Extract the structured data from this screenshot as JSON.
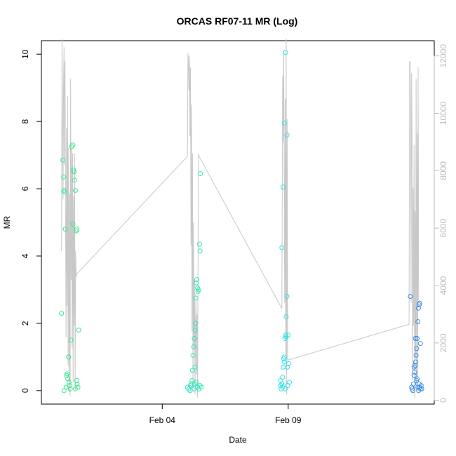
{
  "chart_data": {
    "type": "scatter",
    "title": "ORCAS RF07-11 MR (Log)",
    "xlabel": "Date",
    "ylabel": "MR",
    "x_ticks": [
      {
        "label": "Feb 04",
        "value": 4.0
      },
      {
        "label": "Feb 09",
        "value": 9.0
      }
    ],
    "xlim": [
      -0.8,
      14.8
    ],
    "ylim": [
      -0.4,
      10.4
    ],
    "y_ticks": [
      "0",
      "2",
      "4",
      "6",
      "8",
      "10"
    ],
    "y2_ticks": [
      "0",
      "2000",
      "4000",
      "6000",
      "8000",
      "10000",
      "12000"
    ],
    "y2lim": [
      -130,
      12530
    ],
    "grid": false,
    "colors": {
      "series_line": "#c8c8c8",
      "flight_1": "#3ce88e",
      "flight_2": "#33e6bb",
      "flight_3": "#33e0e6",
      "flight_4": "#3b8ee8"
    },
    "series": [
      {
        "flight": 1,
        "color_key": "flight_1",
        "points": [
          [
            0.0,
            2.3
          ],
          [
            0.05,
            6.85
          ],
          [
            0.08,
            6.35
          ],
          [
            0.1,
            5.95
          ],
          [
            0.12,
            5.9
          ],
          [
            0.15,
            4.8
          ],
          [
            0.2,
            0.45
          ],
          [
            0.25,
            0.35
          ],
          [
            0.3,
            0.25
          ],
          [
            0.32,
            0.15
          ],
          [
            0.35,
            0.05
          ],
          [
            0.1,
            0.0
          ],
          [
            0.18,
            0.1
          ],
          [
            0.22,
            0.5
          ],
          [
            0.28,
            1.0
          ],
          [
            0.38,
            1.5
          ],
          [
            0.4,
            7.25
          ],
          [
            0.45,
            7.3
          ],
          [
            0.48,
            6.55
          ],
          [
            0.5,
            6.5
          ],
          [
            0.52,
            6.25
          ],
          [
            0.55,
            5.95
          ],
          [
            0.45,
            4.95
          ],
          [
            0.58,
            4.75
          ],
          [
            0.6,
            4.8
          ],
          [
            0.6,
            0.3
          ],
          [
            0.62,
            0.2
          ],
          [
            0.65,
            0.1
          ],
          [
            0.68,
            1.8
          ],
          [
            0.55,
            0.05
          ]
        ]
      },
      {
        "flight": 2,
        "color_key": "flight_2",
        "points": [
          [
            5.0,
            0.1
          ],
          [
            5.05,
            0.05
          ],
          [
            5.1,
            0.0
          ],
          [
            5.12,
            0.15
          ],
          [
            5.15,
            0.2
          ],
          [
            5.18,
            0.3
          ],
          [
            5.2,
            0.6
          ],
          [
            5.22,
            1.05
          ],
          [
            5.25,
            1.3
          ],
          [
            5.27,
            1.55
          ],
          [
            5.3,
            1.8
          ],
          [
            5.32,
            2.0
          ],
          [
            5.33,
            2.75
          ],
          [
            5.35,
            3.2
          ],
          [
            5.37,
            3.3
          ],
          [
            5.4,
            3.05
          ],
          [
            5.42,
            2.95
          ],
          [
            5.45,
            3.0
          ],
          [
            5.48,
            4.35
          ],
          [
            5.5,
            4.15
          ],
          [
            5.52,
            6.45
          ],
          [
            5.3,
            0.7
          ],
          [
            5.35,
            0.25
          ],
          [
            5.4,
            0.1
          ],
          [
            5.45,
            0.05
          ],
          [
            5.5,
            0.15
          ],
          [
            5.55,
            0.1
          ],
          [
            5.28,
            0.2
          ],
          [
            5.26,
            0.05
          ]
        ]
      },
      {
        "flight": 3,
        "color_key": "flight_3",
        "points": [
          [
            8.7,
            0.15
          ],
          [
            8.72,
            0.05
          ],
          [
            8.75,
            0.2
          ],
          [
            8.78,
            0.4
          ],
          [
            8.8,
            0.7
          ],
          [
            8.82,
            0.95
          ],
          [
            8.85,
            1.0
          ],
          [
            8.87,
            1.55
          ],
          [
            8.9,
            1.65
          ],
          [
            8.92,
            2.2
          ],
          [
            8.95,
            2.8
          ],
          [
            8.75,
            4.25
          ],
          [
            8.8,
            6.05
          ],
          [
            8.85,
            7.95
          ],
          [
            8.9,
            10.05
          ],
          [
            8.95,
            7.6
          ],
          [
            9.0,
            1.65
          ],
          [
            9.02,
            0.8
          ],
          [
            8.97,
            0.7
          ],
          [
            9.05,
            0.25
          ],
          [
            8.7,
            0.3
          ],
          [
            8.78,
            0.1
          ],
          [
            8.88,
            0.05
          ],
          [
            8.98,
            0.15
          ],
          [
            8.84,
            0.85
          ],
          [
            8.92,
            1.6
          ]
        ]
      },
      {
        "flight": 4,
        "color_key": "flight_4",
        "points": [
          [
            13.85,
            2.8
          ],
          [
            13.9,
            0.1
          ],
          [
            13.93,
            0.05
          ],
          [
            13.95,
            0.0
          ],
          [
            13.98,
            0.2
          ],
          [
            14.0,
            0.45
          ],
          [
            14.02,
            0.55
          ],
          [
            14.04,
            0.75
          ],
          [
            14.06,
            0.85
          ],
          [
            14.08,
            1.05
          ],
          [
            14.1,
            1.25
          ],
          [
            14.12,
            1.55
          ],
          [
            14.15,
            2.05
          ],
          [
            14.17,
            2.45
          ],
          [
            14.2,
            2.55
          ],
          [
            14.22,
            2.6
          ],
          [
            14.25,
            1.4
          ],
          [
            14.28,
            0.15
          ],
          [
            14.3,
            0.05
          ],
          [
            14.05,
            1.55
          ],
          [
            14.1,
            0.3
          ],
          [
            14.15,
            0.1
          ],
          [
            14.18,
            0.0
          ],
          [
            14.2,
            0.2
          ],
          [
            14.25,
            0.05
          ],
          [
            14.0,
            0.7
          ],
          [
            14.12,
            0.35
          ],
          [
            14.22,
            0.1
          ]
        ]
      }
    ],
    "secondary_line": {
      "axis": "right",
      "color_key": "series_line",
      "points": [
        [
          0.0,
          5200
        ],
        [
          0.02,
          12600
        ],
        [
          0.04,
          9800
        ],
        [
          0.06,
          7000
        ],
        [
          0.08,
          11000
        ],
        [
          0.1,
          12300
        ],
        [
          0.12,
          8200
        ],
        [
          0.14,
          11800
        ],
        [
          0.16,
          6200
        ],
        [
          0.18,
          2200
        ],
        [
          0.2,
          9500
        ],
        [
          0.22,
          3300
        ],
        [
          0.24,
          10600
        ],
        [
          0.26,
          1200
        ],
        [
          0.28,
          8800
        ],
        [
          0.3,
          300
        ],
        [
          0.32,
          7200
        ],
        [
          0.34,
          150
        ],
        [
          0.36,
          11200
        ],
        [
          0.38,
          4200
        ],
        [
          0.4,
          8800
        ],
        [
          0.42,
          1800
        ],
        [
          0.44,
          8600
        ],
        [
          0.46,
          600
        ],
        [
          0.48,
          7100
        ],
        [
          0.5,
          2600
        ],
        [
          0.52,
          8600
        ],
        [
          0.54,
          350
        ],
        [
          0.56,
          5200
        ],
        [
          0.58,
          4300
        ],
        [
          0.6,
          4400
        ],
        [
          5.0,
          8500
        ],
        [
          5.02,
          12100
        ],
        [
          5.04,
          11700
        ],
        [
          5.06,
          10800
        ],
        [
          5.08,
          12000
        ],
        [
          5.1,
          9200
        ],
        [
          5.12,
          11600
        ],
        [
          5.14,
          5400
        ],
        [
          5.16,
          10300
        ],
        [
          5.18,
          2400
        ],
        [
          5.2,
          8600
        ],
        [
          5.22,
          300
        ],
        [
          5.24,
          6200
        ],
        [
          5.26,
          1800
        ],
        [
          5.28,
          4200
        ],
        [
          5.3,
          200
        ],
        [
          5.32,
          2600
        ],
        [
          5.34,
          3800
        ],
        [
          5.36,
          900
        ],
        [
          5.38,
          3000
        ],
        [
          5.4,
          100
        ],
        [
          5.42,
          4500
        ],
        [
          5.44,
          8600
        ],
        [
          5.46,
          8500
        ],
        [
          8.75,
          3200
        ],
        [
          8.78,
          11300
        ],
        [
          8.8,
          9000
        ],
        [
          8.82,
          12200
        ],
        [
          8.84,
          8600
        ],
        [
          8.86,
          3400
        ],
        [
          8.88,
          10500
        ],
        [
          8.9,
          1600
        ],
        [
          8.92,
          12600
        ],
        [
          8.94,
          200
        ],
        [
          8.96,
          9800
        ],
        [
          8.98,
          1400
        ],
        [
          13.8,
          2650
        ],
        [
          13.82,
          11800
        ],
        [
          13.84,
          11800
        ],
        [
          13.86,
          10500
        ],
        [
          13.88,
          3400
        ],
        [
          13.9,
          11400
        ],
        [
          13.92,
          9000
        ],
        [
          13.94,
          700
        ],
        [
          13.96,
          7400
        ],
        [
          13.98,
          2600
        ],
        [
          14.0,
          8900
        ],
        [
          14.02,
          100
        ],
        [
          14.04,
          6600
        ],
        [
          14.06,
          1500
        ],
        [
          14.08,
          11200
        ],
        [
          14.1,
          300
        ],
        [
          14.12,
          9300
        ],
        [
          14.14,
          800
        ],
        [
          14.16,
          11600
        ],
        [
          14.18,
          3500
        ]
      ]
    }
  }
}
